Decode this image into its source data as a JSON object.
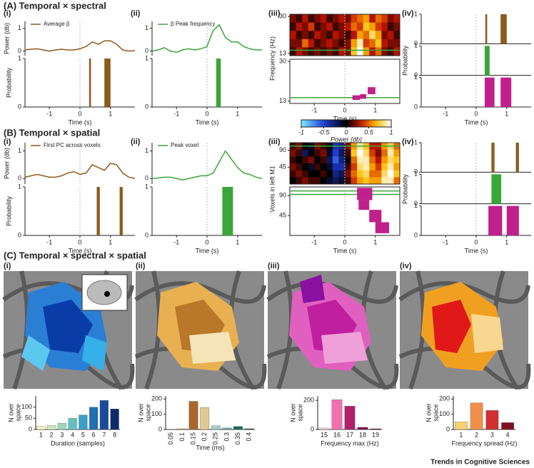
{
  "sections": [
    "(A) Temporal × spectral",
    "(B) Temporal × spatial",
    "(C) Temporal × spectral × spatial"
  ],
  "footer": "Trends in Cognitive Sciences",
  "chart_data": [
    {
      "type": "line",
      "label": "(i)",
      "ylabel": "Power (db)",
      "xlim": [
        -1.8,
        1.8
      ],
      "ylim": [
        -0.2,
        1.3
      ],
      "yticks": [
        0,
        1
      ],
      "vline": 0,
      "x": [
        -1.8,
        -1.6,
        -1.4,
        -1.2,
        -1.0,
        -0.8,
        -0.6,
        -0.4,
        -0.2,
        0,
        0.2,
        0.4,
        0.6,
        0.8,
        1.0,
        1.2,
        1.4,
        1.6,
        1.8
      ],
      "series": [
        {
          "name": "Average β",
          "color": "#8c5a1c",
          "values": [
            0.05,
            0.08,
            0.1,
            0.05,
            0.0,
            0.05,
            0.08,
            0.05,
            0.05,
            0.1,
            0.2,
            0.4,
            0.3,
            0.45,
            0.45,
            0.3,
            0.05,
            0.0,
            0.02
          ]
        }
      ]
    },
    {
      "type": "spans",
      "ylabel": "Probability",
      "xlabel": "Time (s)",
      "xlim": [
        -1.8,
        1.8
      ],
      "ylim": [
        0,
        1
      ],
      "xticks": [
        -1,
        0,
        1
      ],
      "yticks": [
        0,
        1
      ],
      "vline": 0,
      "series": [
        {
          "color": "#8c5a1c",
          "starts": [
            0.3,
            0.8
          ],
          "ends": [
            0.36,
            1.0
          ],
          "values": [
            1,
            1
          ]
        }
      ]
    },
    {
      "type": "line",
      "label": "(ii)",
      "xlim": [
        -1.8,
        1.8
      ],
      "ylim": [
        -0.2,
        1.3
      ],
      "yticks": [
        0,
        1
      ],
      "vline": 0,
      "x": [
        -1.8,
        -1.6,
        -1.4,
        -1.2,
        -1.0,
        -0.8,
        -0.6,
        -0.4,
        -0.2,
        0,
        0.2,
        0.4,
        0.6,
        0.8,
        1.0,
        1.2,
        1.4,
        1.6,
        1.8
      ],
      "series": [
        {
          "name": "β Peak frequency",
          "color": "#3aa63a",
          "values": [
            0.0,
            0.05,
            0.15,
            0.0,
            -0.05,
            0.05,
            0.1,
            0.05,
            0.1,
            0.2,
            0.9,
            1.15,
            0.6,
            0.4,
            0.4,
            0.2,
            0.1,
            0.05,
            0.05
          ]
        }
      ]
    },
    {
      "type": "spans",
      "xlabel": "Time (s)",
      "xlim": [
        -1.8,
        1.8
      ],
      "ylim": [
        0,
        1
      ],
      "xticks": [
        -1,
        0,
        1
      ],
      "yticks": [
        0,
        1
      ],
      "vline": 0,
      "series": [
        {
          "color": "#3aa63a",
          "starts": [
            0.3
          ],
          "ends": [
            0.45
          ],
          "values": [
            1
          ]
        }
      ]
    },
    {
      "type": "heatmap",
      "label": "(iii)",
      "ylabel": "Frequency (Hz)",
      "xlim": [
        -1.8,
        1.8
      ],
      "ylim": [
        12,
        31
      ],
      "yticks": [
        13,
        30
      ],
      "vline": 0,
      "hlines": [
        14.5
      ],
      "values": [
        [
          0.2,
          0.1,
          0.3,
          0.1,
          0.2,
          0.3,
          0.1,
          0.2,
          0.3,
          0.2,
          0.4,
          0.5,
          0.6,
          0.3,
          0.5,
          0.4,
          0.2,
          0.3
        ],
        [
          0.1,
          0.3,
          0.2,
          0.4,
          0.1,
          0.2,
          0.3,
          0.1,
          0.2,
          0.3,
          0.5,
          0.4,
          0.7,
          0.6,
          0.4,
          0.3,
          0.1,
          0.2
        ],
        [
          0.3,
          0.1,
          0.2,
          0.1,
          0.3,
          0.2,
          0.1,
          0.3,
          0.2,
          0.1,
          0.3,
          0.6,
          0.5,
          0.8,
          0.6,
          0.2,
          0.3,
          0.1
        ],
        [
          0.2,
          0.2,
          0.5,
          0.3,
          0.1,
          0.2,
          0.3,
          0.2,
          0.1,
          0.2,
          0.6,
          0.9,
          0.4,
          0.5,
          0.7,
          0.3,
          0.2,
          0.2
        ],
        [
          0.1,
          0.3,
          0.2,
          0.1,
          0.2,
          0.1,
          0.2,
          0.1,
          0.3,
          0.2,
          0.7,
          1.0,
          0.6,
          0.3,
          0.5,
          0.2,
          0.1,
          0.3
        ]
      ]
    },
    {
      "type": "boxes",
      "xlabel": "Time (s)",
      "xlim": [
        -1.8,
        1.8
      ],
      "ylim": [
        12,
        31
      ],
      "xticks": [
        -1,
        0,
        1
      ],
      "yticks": [
        13,
        30
      ],
      "vline": 0,
      "hlines": [
        14.5
      ],
      "color": "#c0208c",
      "values": [
        [
          0.25,
          0.5,
          13.5,
          15.5
        ],
        [
          0.5,
          0.7,
          14,
          16
        ],
        [
          0.75,
          1.0,
          16,
          19
        ]
      ]
    },
    {
      "type": "spans",
      "label": "(iv)",
      "ylabel": "Probability",
      "xlabel": "Time (s)",
      "xlim": [
        -1.8,
        1.8
      ],
      "ylim": [
        0,
        1
      ],
      "xticks": [
        -1,
        0,
        1
      ],
      "yticks": [
        0,
        1
      ],
      "vline": 0,
      "series": [
        {
          "color": "#8c5a1c",
          "starts": [
            0.3,
            0.8
          ],
          "ends": [
            0.36,
            1.0
          ],
          "values": [
            1,
            1
          ]
        },
        {
          "color": "#3aa63a",
          "starts": [
            0.28
          ],
          "ends": [
            0.44
          ],
          "values": [
            1
          ]
        },
        {
          "color": "#c0208c",
          "starts": [
            0.28,
            0.8
          ],
          "ends": [
            0.6,
            1.15
          ],
          "values": [
            1,
            1
          ]
        }
      ]
    },
    {
      "type": "colorbar",
      "xlabel": "Power (db)",
      "xlim": [
        -1,
        1
      ],
      "xticks": [
        -1,
        -0.5,
        0,
        0.5,
        1
      ]
    },
    {
      "type": "line",
      "label": "(i)",
      "ylabel": "Power (db)",
      "xlim": [
        -1.8,
        1.8
      ],
      "ylim": [
        -0.2,
        1.3
      ],
      "yticks": [
        0,
        1
      ],
      "vline": 0,
      "x": [
        -1.8,
        -1.6,
        -1.4,
        -1.2,
        -1.0,
        -0.8,
        -0.6,
        -0.4,
        -0.2,
        0,
        0.2,
        0.4,
        0.6,
        0.8,
        1.0,
        1.2,
        1.4,
        1.6,
        1.8
      ],
      "series": [
        {
          "name": "First PC across voxels",
          "color": "#8c5a1c",
          "values": [
            0.05,
            0.1,
            0.15,
            0.1,
            0.05,
            0.05,
            0.1,
            0.2,
            0.25,
            0.15,
            0.2,
            0.5,
            0.4,
            0.3,
            0.55,
            0.5,
            0.2,
            0.05,
            0.0
          ]
        }
      ]
    },
    {
      "type": "spans",
      "ylabel": "Probability",
      "xlabel": "Time (s)",
      "xlim": [
        -1.8,
        1.8
      ],
      "ylim": [
        0,
        1
      ],
      "xticks": [
        -1,
        0,
        1
      ],
      "yticks": [
        0,
        1
      ],
      "vline": 0,
      "series": [
        {
          "color": "#8c5a1c",
          "starts": [
            0.55,
            1.3
          ],
          "ends": [
            0.65,
            1.4
          ],
          "values": [
            1,
            1
          ]
        }
      ]
    },
    {
      "type": "line",
      "label": "(ii)",
      "xlim": [
        -1.8,
        1.8
      ],
      "ylim": [
        -0.2,
        1.3
      ],
      "yticks": [
        0,
        1
      ],
      "vline": 0,
      "x": [
        -1.8,
        -1.6,
        -1.4,
        -1.2,
        -1.0,
        -0.8,
        -0.6,
        -0.4,
        -0.2,
        0,
        0.2,
        0.4,
        0.6,
        0.8,
        1.0,
        1.2,
        1.4,
        1.6,
        1.8
      ],
      "series": [
        {
          "name": "Peak voxel",
          "color": "#3aa63a",
          "values": [
            0,
            0.02,
            0.05,
            0.05,
            0.0,
            -0.05,
            0.0,
            0.05,
            0.1,
            0.1,
            0.2,
            0.6,
            1.0,
            0.7,
            0.4,
            0.2,
            0.15,
            0.05,
            0.0
          ]
        }
      ]
    },
    {
      "type": "spans",
      "xlabel": "Time (s)",
      "xlim": [
        -1.8,
        1.8
      ],
      "ylim": [
        0,
        1
      ],
      "xticks": [
        -1,
        0,
        1
      ],
      "yticks": [
        0,
        1
      ],
      "vline": 0,
      "series": [
        {
          "color": "#3aa63a",
          "starts": [
            0.5
          ],
          "ends": [
            0.85
          ],
          "values": [
            1
          ]
        }
      ]
    },
    {
      "type": "heatmap",
      "label": "(iii)",
      "ylabel": "Voxels in left M1",
      "xlim": [
        -1.8,
        1.8
      ],
      "ylim": [
        0,
        110
      ],
      "yticks": [
        45,
        90
      ],
      "vline": 0,
      "hlines": [
        101
      ],
      "values": [
        [
          0.1,
          0.2,
          0.0,
          -0.1,
          0.2,
          0.1,
          0.0,
          -0.4,
          -0.3,
          0.2,
          0.6,
          0.9,
          0.7,
          0.3,
          0.3,
          0.6,
          0.8,
          0.5
        ],
        [
          0.2,
          0.1,
          -0.2,
          0.0,
          0.1,
          0.2,
          -0.1,
          -0.5,
          -0.2,
          0.1,
          0.7,
          1.0,
          0.8,
          0.4,
          0.2,
          0.5,
          0.9,
          0.6
        ],
        [
          0.1,
          0.0,
          0.1,
          0.2,
          0.0,
          0.1,
          -0.2,
          -0.6,
          -0.3,
          0.0,
          0.5,
          0.9,
          0.9,
          0.5,
          0.3,
          0.6,
          0.8,
          0.7
        ],
        [
          0.2,
          0.1,
          0.0,
          -0.1,
          0.1,
          0.0,
          -0.1,
          -0.4,
          -0.4,
          0.1,
          0.4,
          0.8,
          0.9,
          0.6,
          0.4,
          0.7,
          0.9,
          0.6
        ],
        [
          0.1,
          0.2,
          0.1,
          0.0,
          0.0,
          0.1,
          0.0,
          -0.3,
          -0.2,
          0.2,
          0.5,
          0.7,
          0.8,
          0.5,
          0.5,
          0.8,
          1.0,
          0.7
        ],
        [
          0.0,
          0.1,
          0.2,
          0.1,
          0.1,
          0.0,
          -0.1,
          -0.2,
          -0.1,
          0.1,
          0.4,
          0.6,
          0.7,
          0.6,
          0.6,
          0.9,
          0.9,
          0.5
        ]
      ]
    },
    {
      "type": "boxes",
      "xlabel": "Time (s)",
      "xlim": [
        -1.8,
        1.8
      ],
      "ylim": [
        0,
        110
      ],
      "xticks": [
        -1,
        0,
        1
      ],
      "yticks": [
        45,
        90
      ],
      "vline": 0,
      "hlines": [
        101,
        93
      ],
      "color": "#c0208c",
      "values": [
        [
          0.4,
          0.9,
          80,
          108
        ],
        [
          0.45,
          0.8,
          58,
          80
        ],
        [
          0.8,
          1.2,
          30,
          58
        ],
        [
          1.0,
          1.45,
          5,
          30
        ]
      ]
    },
    {
      "type": "spans",
      "label": "(iv)",
      "ylabel": "Probability",
      "xlabel": "Time (s)",
      "xlim": [
        -1.8,
        1.8
      ],
      "ylim": [
        0,
        1
      ],
      "xticks": [
        -1,
        0,
        1
      ],
      "yticks": [
        0,
        1
      ],
      "vline": 0,
      "series": [
        {
          "color": "#8c5a1c",
          "starts": [
            0.5,
            1.3
          ],
          "ends": [
            0.6,
            1.4
          ],
          "values": [
            1,
            1
          ]
        },
        {
          "color": "#3aa63a",
          "starts": [
            0.5
          ],
          "ends": [
            0.82
          ],
          "values": [
            1
          ]
        },
        {
          "color": "#c0208c",
          "starts": [
            0.4,
            1.0
          ],
          "ends": [
            0.85,
            1.4
          ],
          "values": [
            1,
            1
          ]
        }
      ]
    },
    {
      "type": "bar",
      "label": "(i)",
      "ylabel": [
        "N over",
        "space"
      ],
      "xlabel": "Duration (samples)",
      "ylim": [
        0,
        150
      ],
      "yticks": [
        0,
        50,
        100
      ],
      "categories": [
        "1",
        "2",
        "3",
        "4",
        "5",
        "6",
        "7",
        "8"
      ],
      "values": [
        15,
        18,
        28,
        50,
        65,
        100,
        130,
        92
      ],
      "colors": [
        "#f7f3c0",
        "#cfe8b8",
        "#9fd6b5",
        "#63c0c0",
        "#3aa0c8",
        "#2070b4",
        "#1a4a9c",
        "#0c2a6c"
      ]
    },
    {
      "type": "bar",
      "label": "(ii)",
      "ylabel": [
        "N over",
        "space"
      ],
      "xlabel": "Time (ms)",
      "ylim": [
        0,
        220
      ],
      "yticks": [
        0,
        100,
        200
      ],
      "rotate_labels": true,
      "categories": [
        "0.05",
        "0.1",
        "0.15",
        "0.2",
        "0.25",
        "0.3",
        "0.35",
        "0.4"
      ],
      "values": [
        2,
        5,
        185,
        145,
        25,
        10,
        20,
        5
      ],
      "colors": [
        "#e8e0c0",
        "#c8a060",
        "#a8682a",
        "#e0c890",
        "#a0d0c8",
        "#60b0a8",
        "#1a6a60",
        "#0a4a40"
      ]
    },
    {
      "type": "bar",
      "label": "(iii)",
      "ylabel": [
        "N over",
        "space"
      ],
      "xlabel": "Frequency max (Hz)",
      "ylim": [
        0,
        230
      ],
      "yticks": [
        0,
        200
      ],
      "categories": [
        "15",
        "16",
        "17",
        "18",
        "19"
      ],
      "values": [
        10,
        205,
        160,
        15,
        5
      ],
      "colors": [
        "#f8d0e0",
        "#f070b0",
        "#b0206a",
        "#7a1050",
        "#500a38"
      ]
    },
    {
      "type": "bar",
      "label": "(iv)",
      "ylabel": [
        "N over",
        "space"
      ],
      "xlabel": "Frequency spread (Hz)",
      "ylim": [
        0,
        220
      ],
      "yticks": [
        0,
        100,
        200
      ],
      "categories": [
        "1",
        "2",
        "3",
        "4"
      ],
      "values": [
        50,
        175,
        125,
        45
      ],
      "colors": [
        "#f8d070",
        "#f09048",
        "#d03030",
        "#801020"
      ]
    }
  ]
}
